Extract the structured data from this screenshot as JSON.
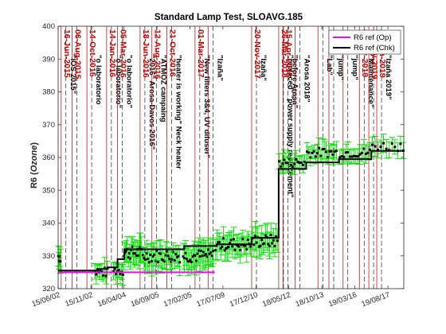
{
  "chart_data": {
    "type": "line",
    "title": "Standard Lamp Test, SLOAVG.185",
    "ylabel": "R6 (",
    "ylabel_italic": "Ozone",
    "ylabel_close": ")",
    "xlim": [
      "2015-06-02",
      "2019-10-30"
    ],
    "ylim": [
      320,
      400
    ],
    "grid": false,
    "legend_position": "top-right",
    "x_ticks": [
      "15/06/02",
      "15/11/02",
      "16/04/04",
      "16/09/05",
      "17/02/05",
      "17/07/09",
      "17/12/10",
      "18/05/12",
      "18/10/13",
      "19/03/16",
      "19/08/17"
    ],
    "x_tick_dates": [
      "2015-06-02",
      "2015-11-02",
      "2016-04-04",
      "2016-09-05",
      "2017-02-05",
      "2017-07-09",
      "2017-12-10",
      "2018-05-12",
      "2018-10-13",
      "2019-03-16",
      "2019-08-17"
    ],
    "y_ticks": [
      320,
      330,
      340,
      350,
      360,
      370,
      380,
      390,
      400
    ],
    "series": [
      {
        "name": "R6 ref (Op)",
        "color": "#ff00ff",
        "points": [
          [
            "2015-06-02",
            325
          ],
          [
            "2017-06-01",
            325
          ]
        ]
      },
      {
        "name": "R6 ref (Chk)",
        "color": "#000000",
        "points": [
          [
            "2015-06-02",
            325.5
          ],
          [
            "2015-12-01",
            325.5
          ],
          [
            "2015-12-01",
            326
          ],
          [
            "2016-01-20",
            326
          ],
          [
            "2016-01-20",
            326.5
          ],
          [
            "2016-03-05",
            326.5
          ],
          [
            "2016-03-05",
            329
          ],
          [
            "2016-04-05",
            329
          ],
          [
            "2016-04-05",
            332
          ],
          [
            "2017-01-10",
            332
          ],
          [
            "2017-01-10",
            333
          ],
          [
            "2017-06-10",
            333
          ],
          [
            "2017-06-10",
            333.5
          ],
          [
            "2017-11-20",
            333.5
          ],
          [
            "2017-11-20",
            335.5
          ],
          [
            "2018-03-26",
            335.5
          ],
          [
            "2018-03-26",
            356.5
          ],
          [
            "2018-08-01",
            356.5
          ],
          [
            "2018-08-01",
            358.5
          ],
          [
            "2019-01-01",
            358.5
          ],
          [
            "2019-01-01",
            359.5
          ],
          [
            "2019-06-01",
            359.5
          ],
          [
            "2019-06-01",
            362
          ],
          [
            "2019-10-30",
            362
          ]
        ]
      }
    ],
    "observation_clusters": [
      {
        "from": "2015-06-03",
        "to": "2015-06-12",
        "center": 330,
        "spread": 2,
        "err": 3,
        "count": 4
      },
      {
        "from": "2015-11-20",
        "to": "2016-01-18",
        "center": 325,
        "spread": 1.5,
        "err": 2.5,
        "count": 10
      },
      {
        "from": "2016-02-15",
        "to": "2016-03-30",
        "center": 325.5,
        "spread": 1.5,
        "err": 2.5,
        "count": 8
      },
      {
        "from": "2016-04-05",
        "to": "2016-06-25",
        "center": 331,
        "spread": 2,
        "err": 3.5,
        "count": 18
      },
      {
        "from": "2016-07-01",
        "to": "2016-12-20",
        "center": 330,
        "spread": 2,
        "err": 3.5,
        "count": 30
      },
      {
        "from": "2017-01-05",
        "to": "2017-05-25",
        "center": 330,
        "spread": 2,
        "err": 3.5,
        "count": 26
      },
      {
        "from": "2017-06-05",
        "to": "2017-11-15",
        "center": 333.5,
        "spread": 2,
        "err": 3.5,
        "count": 28
      },
      {
        "from": "2017-11-25",
        "to": "2018-03-20",
        "center": 334.5,
        "spread": 2,
        "err": 3.5,
        "count": 20
      },
      {
        "from": "2018-03-28",
        "to": "2018-07-25",
        "center": 358.5,
        "spread": 1.5,
        "err": 2.5,
        "count": 16
      },
      {
        "from": "2018-08-05",
        "to": "2018-12-20",
        "center": 361.5,
        "spread": 1.5,
        "err": 2.5,
        "count": 18
      },
      {
        "from": "2019-01-05",
        "to": "2019-05-25",
        "center": 361.5,
        "spread": 1.5,
        "err": 2.5,
        "count": 16
      },
      {
        "from": "2019-06-05",
        "to": "2019-10-28",
        "center": 363.5,
        "spread": 1.5,
        "err": 2.5,
        "count": 12
      }
    ],
    "events": [
      {
        "date": "2015-06-16",
        "label": "16-Jun-2015",
        "note": "\"IOS 2015\""
      },
      {
        "date": "2015-08-06",
        "label": "06-Aug-2015",
        "note": ""
      },
      {
        "date": "2015-10-14",
        "label": "14-Oct-2015",
        "note": "\"o laboratorio"
      },
      {
        "date": "2016-01-14",
        "label": "14-Jan-2016",
        "note": "\"o laboratorio\""
      },
      {
        "date": "2016-03-05",
        "label": "05-Mar-2016",
        "note": "\"o laboratorio\""
      },
      {
        "date": "2016-06-18",
        "label": "18-Jun-2016",
        "note": "\"2016\" Arosa-Davos 2016\""
      },
      {
        "date": "2016-08-12",
        "label": "12-Aug-2016",
        "note": "\"ATMOZ campaing"
      },
      {
        "date": "2016-10-21",
        "label": "21-Oct-2016",
        "note": "\"heater is working\" Neck heater"
      },
      {
        "date": "2017-03-01",
        "label": "01-Mar-2017",
        "note": "\"New filters 3&4, UV difuser\""
      },
      {
        "date": "2017-05-01",
        "label": "",
        "note": "\"Izaña\""
      },
      {
        "date": "2017-11-20",
        "label": "20-Nov-2017",
        "note": "\"Izaña\""
      },
      {
        "date": "2018-03-26",
        "label": "26-Mar-2018",
        "note": "\"replaced\" \"power supply replacement\""
      },
      {
        "date": "2018-04-15",
        "label": "15-Apr-2018",
        "note": "\"before Arosa\""
      },
      {
        "date": "2018-06-10",
        "label": "",
        "note": "\"Arosa 2018\""
      },
      {
        "date": "2018-09-25",
        "label": "",
        "note": "\"Lab\""
      },
      {
        "date": "2018-11-15",
        "label": "",
        "note": "\"jump\""
      },
      {
        "date": "2019-01-20",
        "label": "",
        "note": "\"jump\""
      },
      {
        "date": "2019-04-06",
        "label": "06-Apr-2019",
        "note": "\"Maintenance\""
      },
      {
        "date": "2019-05-20",
        "label": "20-May-2019",
        "note": ""
      },
      {
        "date": "2019-06-26",
        "label": "26-Jun-2019",
        "note": "\"Izaña 2019\""
      }
    ]
  }
}
